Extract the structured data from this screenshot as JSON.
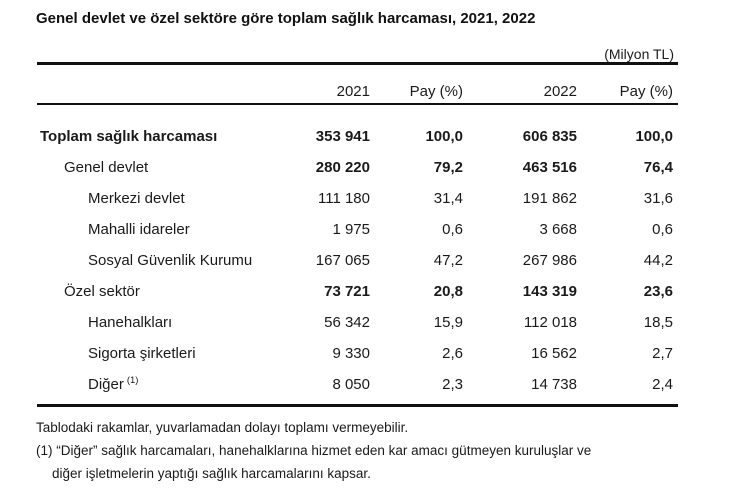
{
  "title": "Genel devlet ve özel sektöre göre toplam sağlık harcaması, 2021, 2022",
  "unit_label": "(Milyon TL)",
  "table": {
    "columns": [
      "2021",
      "Pay (%)",
      "2022",
      "Pay (%)"
    ],
    "rows": [
      {
        "label": "Toplam sağlık harcaması",
        "sup": "",
        "indent": 0,
        "label_bold": true,
        "values_bold": true,
        "values": [
          "353 941",
          "100,0",
          "606 835",
          "100,0"
        ]
      },
      {
        "label": "Genel devlet",
        "sup": "",
        "indent": 1,
        "label_bold": false,
        "values_bold": true,
        "values": [
          "280 220",
          "79,2",
          "463 516",
          "76,4"
        ]
      },
      {
        "label": "Merkezi devlet",
        "sup": "",
        "indent": 2,
        "label_bold": false,
        "values_bold": false,
        "values": [
          "111 180",
          "31,4",
          "191 862",
          "31,6"
        ]
      },
      {
        "label": "Mahalli idareler",
        "sup": "",
        "indent": 2,
        "label_bold": false,
        "values_bold": false,
        "values": [
          "1 975",
          "0,6",
          "3 668",
          "0,6"
        ]
      },
      {
        "label": "Sosyal Güvenlik Kurumu",
        "sup": "",
        "indent": 2,
        "label_bold": false,
        "values_bold": false,
        "values": [
          "167 065",
          "47,2",
          "267 986",
          "44,2"
        ]
      },
      {
        "label": "Özel sektör",
        "sup": "",
        "indent": 1,
        "label_bold": false,
        "values_bold": true,
        "values": [
          "73 721",
          "20,8",
          "143 319",
          "23,6"
        ]
      },
      {
        "label": "Hanehalkları",
        "sup": "",
        "indent": 2,
        "label_bold": false,
        "values_bold": false,
        "values": [
          "56 342",
          "15,9",
          "112 018",
          "18,5"
        ]
      },
      {
        "label": "Sigorta şirketleri",
        "sup": "",
        "indent": 2,
        "label_bold": false,
        "values_bold": false,
        "values": [
          "9 330",
          "2,6",
          "16 562",
          "2,7"
        ]
      },
      {
        "label": "Diğer",
        "sup": "(1)",
        "indent": 2,
        "label_bold": false,
        "values_bold": false,
        "values": [
          "8 050",
          "2,3",
          "14 738",
          "2,4"
        ]
      }
    ]
  },
  "footnotes": [
    "Tablodaki rakamlar, yuvarlamadan dolayı toplamı vermeyebilir.",
    "(1) “Diğer” sağlık harcamaları, hanehalklarına hizmet eden kar amacı gütmeyen kuruluşlar ve",
    "diğer işletmelerin yaptığı sağlık harcamalarını kapsar."
  ],
  "colors": {
    "text": "#1a1a1a",
    "line": "#111111",
    "background": "#ffffff"
  },
  "chart_data": {
    "type": "table",
    "title": "Genel devlet ve özel sektöre göre toplam sağlık harcaması, 2021, 2022",
    "unit": "Milyon TL",
    "columns": [
      "Kategori",
      "2021",
      "Pay (%)",
      "2022",
      "Pay (%)"
    ],
    "rows": [
      [
        "Toplam sağlık harcaması",
        353941,
        100.0,
        606835,
        100.0
      ],
      [
        "Genel devlet",
        280220,
        79.2,
        463516,
        76.4
      ],
      [
        "Merkezi devlet",
        111180,
        31.4,
        191862,
        31.6
      ],
      [
        "Mahalli idareler",
        1975,
        0.6,
        3668,
        0.6
      ],
      [
        "Sosyal Güvenlik Kurumu",
        167065,
        47.2,
        267986,
        44.2
      ],
      [
        "Özel sektör",
        73721,
        20.8,
        143319,
        23.6
      ],
      [
        "Hanehalkları",
        56342,
        15.9,
        112018,
        18.5
      ],
      [
        "Sigorta şirketleri",
        9330,
        2.6,
        16562,
        2.7
      ],
      [
        "Diğer (1)",
        8050,
        2.3,
        14738,
        2.4
      ]
    ]
  }
}
